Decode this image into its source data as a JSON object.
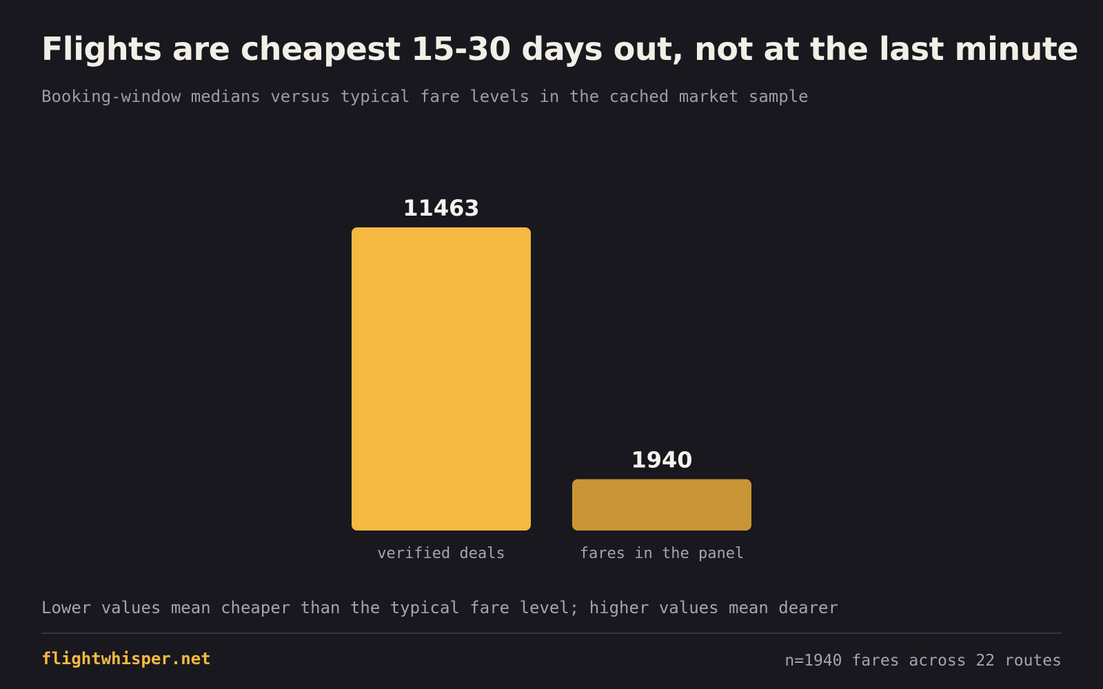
{
  "header": {
    "title": "Flights are cheapest 15-30 days out, not at the last minute",
    "subtitle": "Booking-window medians versus typical fare levels in the cached market sample"
  },
  "chart_data": {
    "type": "bar",
    "title": "Flights are cheapest 15-30 days out, not at the last minute",
    "subtitle": "Booking-window medians versus typical fare levels in the cached market sample",
    "categories": [
      "verified deals",
      "fares in the panel"
    ],
    "values": [
      11463,
      1940
    ],
    "colors": [
      "#f5b942",
      "#c89636"
    ],
    "xlabel": "",
    "ylabel": "",
    "grid": false,
    "legend": "none"
  },
  "footer": {
    "note": "Lower values mean cheaper than the typical fare level; higher values mean dearer",
    "brand": "flightwhisper.net",
    "sample": "n=1940 fares across 22 routes"
  },
  "colors": {
    "background": "#18181e",
    "accent": "#f5b942",
    "text": "#f2efe6",
    "muted": "#a4a4ae"
  }
}
